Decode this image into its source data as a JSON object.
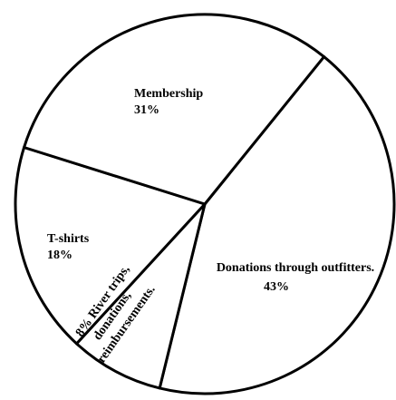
{
  "chart_data": {
    "type": "pie",
    "slices": [
      {
        "label": "Donations through outfitters.",
        "value": 43
      },
      {
        "label": "River trips, donations, reimbursements.",
        "value": 8
      },
      {
        "label": "T-shirts",
        "value": 18
      },
      {
        "label": "Membership",
        "value": 31
      }
    ],
    "text_labels": [
      {
        "name": "Membership",
        "pct": "31%"
      },
      {
        "name": "T-shirts",
        "pct": "18%"
      },
      {
        "name": "Donations through outfitters.",
        "pct": "43%"
      },
      {
        "name_lines": [
          "8% River trips,",
          "donations,",
          "reimbursements."
        ]
      }
    ],
    "colors": {
      "fill": "#ffffff",
      "stroke": "#000000"
    }
  }
}
